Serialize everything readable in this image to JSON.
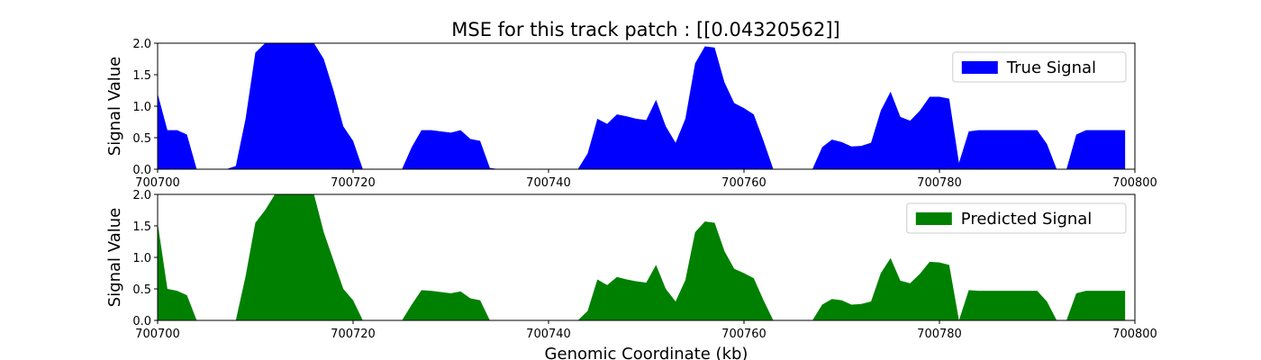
{
  "title": "MSE for this track patch : [[0.04320562]]",
  "chart_data": [
    {
      "type": "area",
      "title": "MSE for this track patch : [[0.04320562]]",
      "xlabel": "",
      "ylabel": "Signal Value",
      "xlim": [
        700700,
        700800
      ],
      "ylim": [
        0,
        2.0
      ],
      "xticks": [
        700700,
        700720,
        700740,
        700760,
        700780,
        700800
      ],
      "xtick_labels": [
        "700700",
        "700720",
        "700740",
        "700760",
        "700780",
        "700800"
      ],
      "yticks": [
        0.0,
        0.5,
        1.0,
        1.5,
        2.0
      ],
      "ytick_labels": [
        "0.0",
        "0.5",
        "1.0",
        "1.5",
        "2.0"
      ],
      "legend_position": "top-right",
      "series": [
        {
          "name": "True Signal",
          "color": "#0000ff",
          "x": [
            700700,
            700701,
            700702,
            700703,
            700704,
            700705,
            700706,
            700707,
            700708,
            700709,
            700710,
            700711,
            700712,
            700713,
            700714,
            700715,
            700716,
            700717,
            700718,
            700719,
            700720,
            700721,
            700722,
            700723,
            700724,
            700725,
            700726,
            700727,
            700728,
            700729,
            700730,
            700731,
            700732,
            700733,
            700734,
            700735,
            700736,
            700737,
            700738,
            700739,
            700740,
            700741,
            700742,
            700743,
            700744,
            700745,
            700746,
            700747,
            700748,
            700749,
            700750,
            700751,
            700752,
            700753,
            700754,
            700755,
            700756,
            700757,
            700758,
            700759,
            700760,
            700761,
            700762,
            700763,
            700764,
            700765,
            700766,
            700767,
            700768,
            700769,
            700770,
            700771,
            700772,
            700773,
            700774,
            700775,
            700776,
            700777,
            700778,
            700779,
            700780,
            700781,
            700782,
            700783,
            700784,
            700785,
            700786,
            700787,
            700788,
            700789,
            700790,
            700791,
            700792,
            700793,
            700794,
            700795,
            700796,
            700797,
            700798,
            700799
          ],
          "values": [
            1.2,
            0.62,
            0.62,
            0.55,
            0,
            0,
            0,
            0,
            0.05,
            0.8,
            1.85,
            2.0,
            2.0,
            2.0,
            2.0,
            2.0,
            2.0,
            1.75,
            1.25,
            0.68,
            0.45,
            0,
            0,
            0,
            0,
            0,
            0.35,
            0.62,
            0.62,
            0.6,
            0.58,
            0.62,
            0.48,
            0.45,
            0.02,
            0,
            0,
            0,
            0,
            0,
            0,
            0,
            0,
            0,
            0.25,
            0.8,
            0.72,
            0.87,
            0.84,
            0.8,
            0.78,
            1.1,
            0.68,
            0.42,
            0.8,
            1.68,
            1.95,
            1.93,
            1.38,
            1.05,
            0.97,
            0.87,
            0.45,
            0,
            0,
            0,
            0,
            0,
            0.35,
            0.47,
            0.43,
            0.36,
            0.37,
            0.42,
            0.93,
            1.23,
            0.83,
            0.77,
            0.93,
            1.15,
            1.15,
            1.12,
            0.1,
            0.6,
            0.62,
            0.62,
            0.62,
            0.62,
            0.62,
            0.62,
            0.62,
            0.4,
            0,
            0,
            0.55,
            0.62,
            0.62,
            0.62,
            0.62,
            0.62
          ]
        }
      ]
    },
    {
      "type": "area",
      "title": "",
      "xlabel": "Genomic Coordinate (kb)",
      "ylabel": "Signal Value",
      "xlim": [
        700700,
        700800
      ],
      "ylim": [
        0,
        2.0
      ],
      "xticks": [
        700700,
        700720,
        700740,
        700760,
        700780,
        700800
      ],
      "xtick_labels": [
        "700700",
        "700720",
        "700740",
        "700760",
        "700780",
        "700800"
      ],
      "yticks": [
        0.0,
        0.5,
        1.0,
        1.5,
        2.0
      ],
      "ytick_labels": [
        "0.0",
        "0.5",
        "1.0",
        "1.5",
        "2.0"
      ],
      "legend_position": "top-right",
      "series": [
        {
          "name": "Predicted Signal",
          "color": "#008000",
          "x": [
            700700,
            700701,
            700702,
            700703,
            700704,
            700705,
            700706,
            700707,
            700708,
            700709,
            700710,
            700711,
            700712,
            700713,
            700714,
            700715,
            700716,
            700717,
            700718,
            700719,
            700720,
            700721,
            700722,
            700723,
            700724,
            700725,
            700726,
            700727,
            700728,
            700729,
            700730,
            700731,
            700732,
            700733,
            700734,
            700735,
            700736,
            700737,
            700738,
            700739,
            700740,
            700741,
            700742,
            700743,
            700744,
            700745,
            700746,
            700747,
            700748,
            700749,
            700750,
            700751,
            700752,
            700753,
            700754,
            700755,
            700756,
            700757,
            700758,
            700759,
            700760,
            700761,
            700762,
            700763,
            700764,
            700765,
            700766,
            700767,
            700768,
            700769,
            700770,
            700771,
            700772,
            700773,
            700774,
            700775,
            700776,
            700777,
            700778,
            700779,
            700780,
            700781,
            700782,
            700783,
            700784,
            700785,
            700786,
            700787,
            700788,
            700789,
            700790,
            700791,
            700792,
            700793,
            700794,
            700795,
            700796,
            700797,
            700798,
            700799
          ],
          "values": [
            1.55,
            0.5,
            0.47,
            0.4,
            0,
            0,
            0,
            0,
            0,
            0.7,
            1.55,
            1.75,
            2.0,
            2.0,
            2.0,
            2.0,
            2.0,
            1.4,
            0.95,
            0.5,
            0.32,
            0,
            0,
            0,
            0,
            0,
            0.25,
            0.48,
            0.47,
            0.45,
            0.43,
            0.46,
            0.35,
            0.32,
            0,
            0,
            0,
            0,
            0,
            0,
            0,
            0,
            0,
            0,
            0.15,
            0.65,
            0.56,
            0.69,
            0.65,
            0.62,
            0.6,
            0.88,
            0.5,
            0.3,
            0.64,
            1.4,
            1.57,
            1.55,
            1.1,
            0.82,
            0.75,
            0.67,
            0.32,
            0,
            0,
            0,
            0,
            0,
            0.25,
            0.34,
            0.32,
            0.25,
            0.26,
            0.3,
            0.75,
            0.99,
            0.63,
            0.59,
            0.74,
            0.93,
            0.92,
            0.88,
            0,
            0.48,
            0.47,
            0.47,
            0.47,
            0.47,
            0.47,
            0.47,
            0.47,
            0.3,
            0,
            0,
            0.43,
            0.47,
            0.47,
            0.47,
            0.47,
            0.47
          ]
        }
      ]
    }
  ]
}
